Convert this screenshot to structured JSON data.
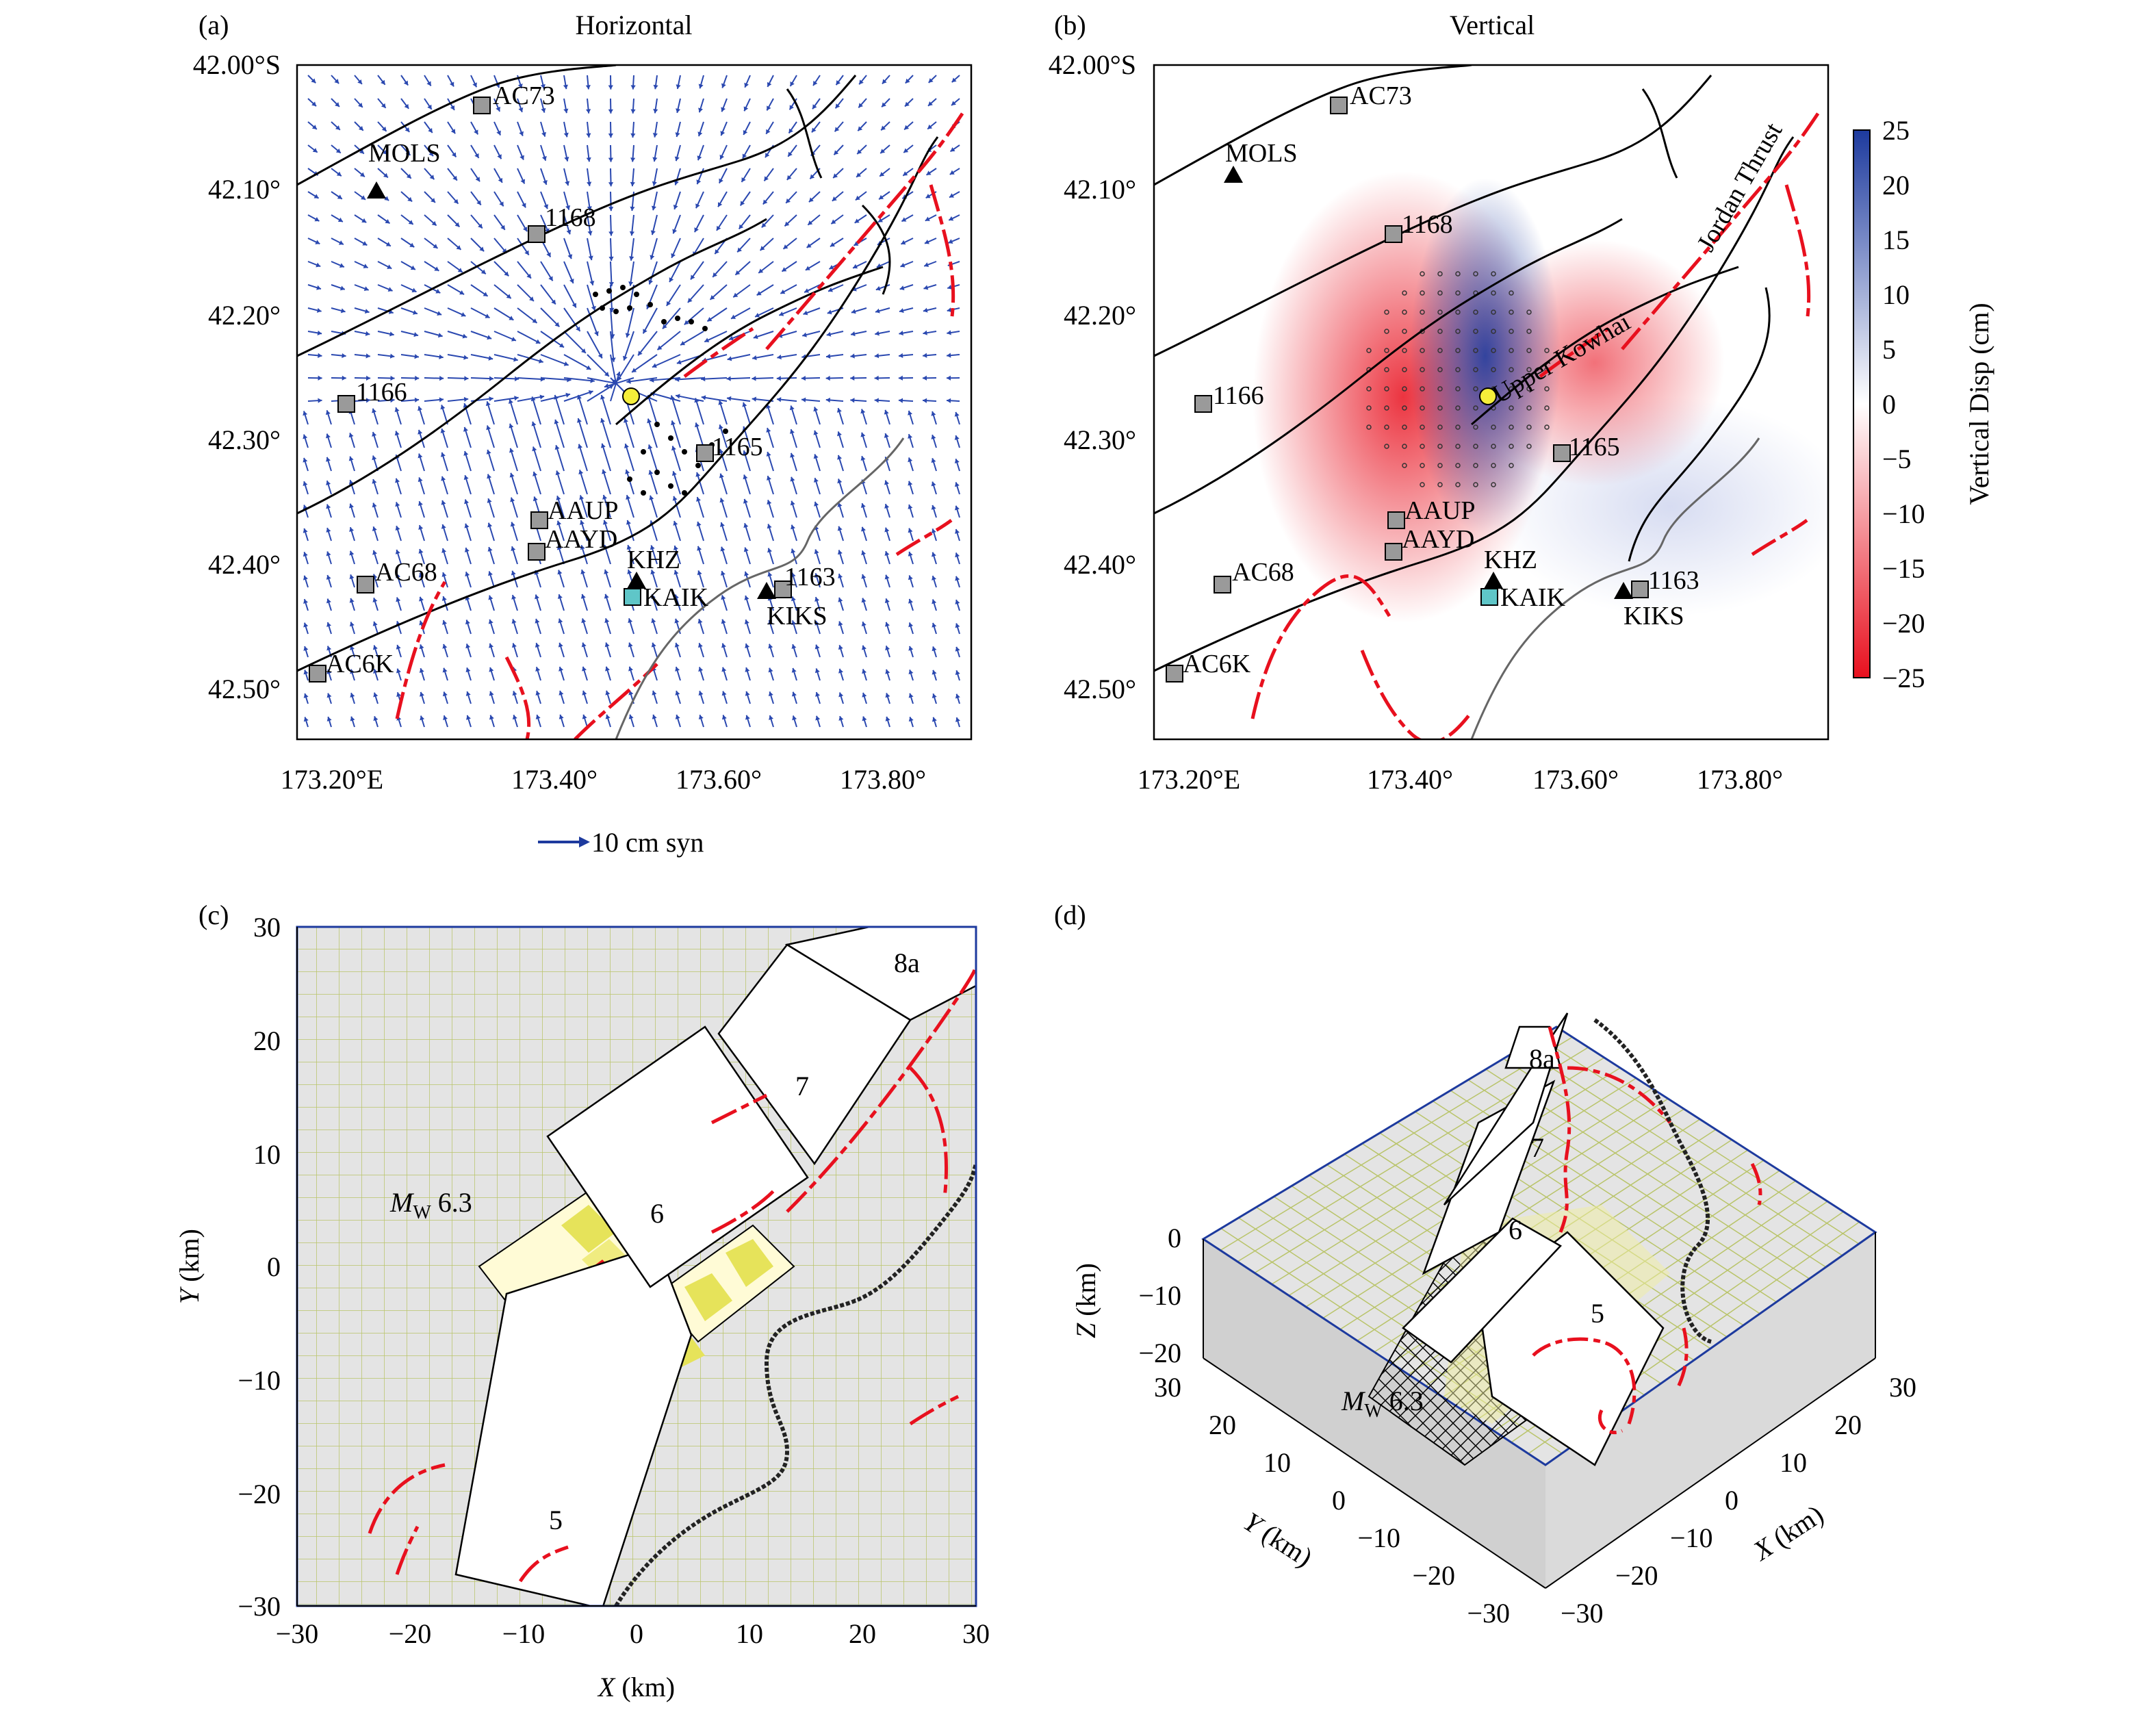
{
  "panels": {
    "a": {
      "letter": "(a)",
      "title": "Horizontal"
    },
    "b": {
      "letter": "(b)",
      "title": "Vertical"
    },
    "c": {
      "letter": "(c)"
    },
    "d": {
      "letter": "(d)"
    }
  },
  "map_axes": {
    "lat_ticks": [
      "42.00°S",
      "42.10°",
      "42.20°",
      "42.30°",
      "42.40°",
      "42.50°"
    ],
    "lon_ticks": [
      "173.20°E",
      "173.40°",
      "173.60°",
      "173.80°"
    ]
  },
  "stations": {
    "AC73": "AC73",
    "MOLS": "MOLS",
    "1168": "1168",
    "1166": "1166",
    "1165": "1165",
    "AAUP": "AAUP",
    "AAYD": "AAYD",
    "KHZ": "KHZ",
    "KAIK": "KAIK",
    "1163": "1163",
    "KIKS": "KIKS",
    "AC68": "AC68",
    "AC6K": "AC6K"
  },
  "legend_a": {
    "label": "10 cm syn"
  },
  "fault_labels": {
    "jordan": "Jordan Thrust",
    "kowhai": "Upper Kowhai"
  },
  "colorbar": {
    "label": "Vertical Disp (cm)",
    "ticks": [
      "25",
      "20",
      "15",
      "10",
      "5",
      "0",
      "−5",
      "−10",
      "−15",
      "−20",
      "−25"
    ],
    "colors": {
      "max": "#1d3a9e",
      "zero": "#ffffff",
      "min": "#e8101e"
    }
  },
  "panel_c": {
    "x_ticks": [
      "−30",
      "−20",
      "−10",
      "0",
      "10",
      "20",
      "30"
    ],
    "y_ticks": [
      "30",
      "20",
      "10",
      "0",
      "−10",
      "−20",
      "−30"
    ],
    "xlabel_var": "X",
    "xlabel_unit": " (km)",
    "ylabel_var": "Y",
    "ylabel_unit": " (km)",
    "segments": [
      "8a",
      "7",
      "6",
      "5"
    ],
    "mw_M": "M",
    "mw_sub": "W",
    "mw_val": " 6.3"
  },
  "panel_d": {
    "z_ticks": [
      "0",
      "−10",
      "−20"
    ],
    "y_ticks": [
      "30",
      "20",
      "10",
      "0",
      "−10",
      "−20",
      "−30"
    ],
    "x_ticks": [
      "30",
      "20",
      "10",
      "0",
      "−10",
      "−20",
      "−30"
    ],
    "zlabel_var": "Z",
    "zlabel_unit": " (km)",
    "ylabel_var": "Y",
    "ylabel_unit": " (km)",
    "xlabel_var": "X",
    "xlabel_unit": " (km)",
    "segments": [
      "8a",
      "7",
      "6",
      "5"
    ],
    "mw_M": "M",
    "mw_sub": "W",
    "mw_val": " 6.3"
  }
}
